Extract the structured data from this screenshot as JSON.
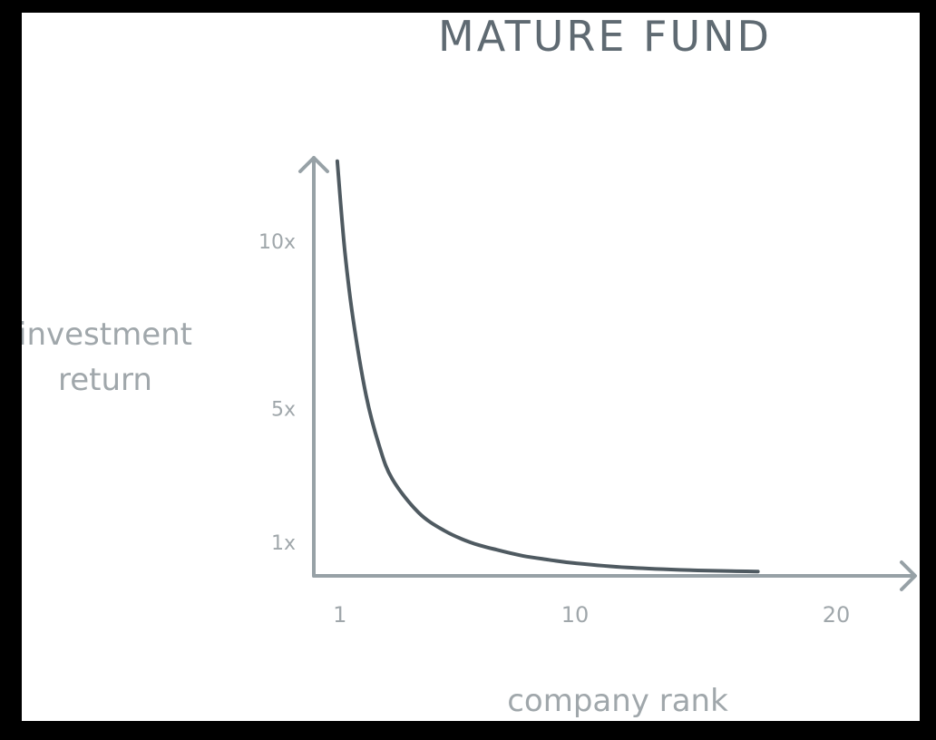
{
  "colors": {
    "background": "#ffffff",
    "letterbox": "#000000",
    "curve": "#4f5a61",
    "axis": "#97a1a6",
    "title": "#5f6a72",
    "label": "#a0a7ab"
  },
  "chart_data": {
    "type": "line",
    "title": "MATURE FUND",
    "xlabel": "company rank",
    "ylabel_lines": [
      "investment",
      "return"
    ],
    "xlim": [
      0,
      22.5
    ],
    "ylim": [
      0,
      12.5
    ],
    "x_ticks": [
      {
        "value": 1,
        "label": "1"
      },
      {
        "value": 10,
        "label": "10"
      },
      {
        "value": 20,
        "label": "20"
      }
    ],
    "y_ticks": [
      {
        "value": 1,
        "label": "1x"
      },
      {
        "value": 5,
        "label": "5x"
      },
      {
        "value": 10,
        "label": "10x"
      }
    ],
    "grid": false,
    "series": [
      {
        "x": [
          0.9,
          1.0,
          1.2,
          1.5,
          2.0,
          2.5,
          3.0,
          4.0,
          5.0,
          6.0,
          7.0,
          8.0,
          9.0,
          10.0,
          12.0,
          14.0,
          16.0,
          17.0
        ],
        "y": [
          12.4,
          11.4,
          9.6,
          7.7,
          5.4,
          3.9,
          2.9,
          1.9,
          1.35,
          1.0,
          0.78,
          0.6,
          0.48,
          0.38,
          0.25,
          0.18,
          0.14,
          0.13
        ]
      }
    ]
  }
}
